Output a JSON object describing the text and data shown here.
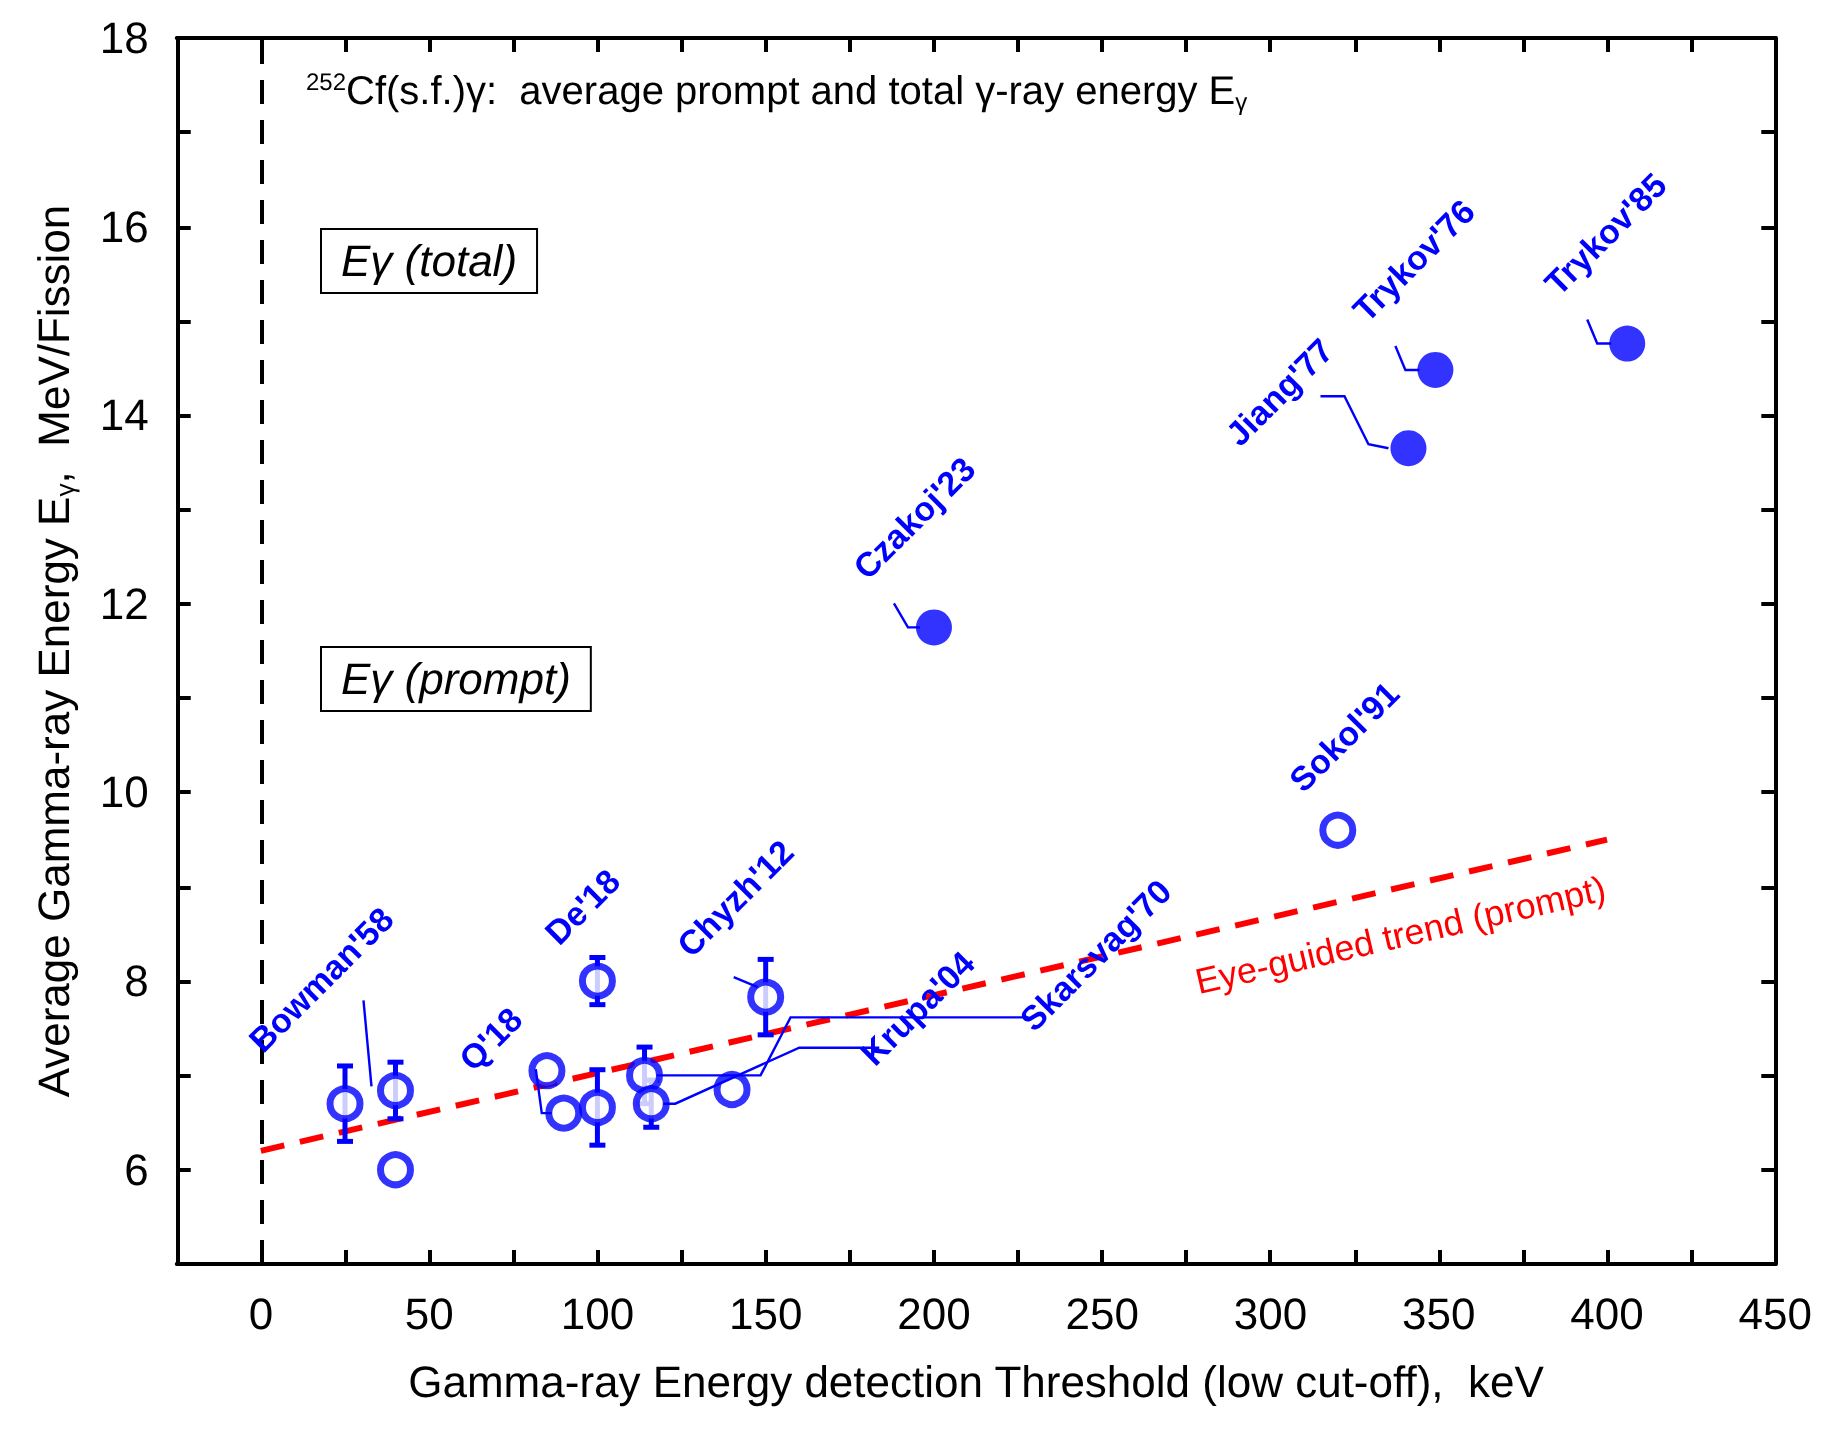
{
  "chart_data": {
    "type": "scatter",
    "title": "$^{252}$Cf(s.f.)γ:  average prompt and total γ-ray energy E$_{γ}$",
    "xlabel": "Gamma-ray Energy detection Threshold (low cut-off),  keV",
    "ylabel": "Average Gamma-ray Energy E$_{γ}$,  MeV/Fission",
    "xlim": [
      -25,
      450
    ],
    "xticks": [
      {
        "value": -25,
        "label": null
      },
      0,
      {
        "value": 25,
        "label": null
      },
      50,
      {
        "value": 75,
        "label": null
      },
      100,
      {
        "value": 125,
        "label": null
      },
      150,
      {
        "value": 175,
        "label": null
      },
      200,
      {
        "value": 225,
        "label": null
      },
      250,
      {
        "value": 275,
        "label": null
      },
      300,
      {
        "value": 325,
        "label": null
      },
      350,
      {
        "value": 375,
        "label": null
      },
      400,
      {
        "value": 425,
        "label": null
      },
      450
    ],
    "ylim": [
      5,
      18
    ],
    "yticks": [
      6,
      {
        "value": 7,
        "label": null
      },
      8,
      {
        "value": 9,
        "label": null
      },
      10,
      {
        "value": 11,
        "label": null
      },
      12,
      {
        "value": 13,
        "label": null
      },
      14,
      {
        "value": 15,
        "label": null
      },
      16,
      {
        "value": 17,
        "label": null
      },
      18
    ],
    "grid": false,
    "series": [
      {
        "color": "#0000ff",
        "marker": "circle",
        "x": [
          25,
          40,
          40,
          85,
          90,
          100,
          100,
          114,
          116,
          140,
          150,
          320
        ],
        "values": [
          6.7,
          6.84,
          6.0,
          7.05,
          6.6,
          6.66,
          8.0,
          7.0,
          6.7,
          6.85,
          7.83,
          9.6
        ],
        "errors": [
          0.4,
          0.3,
          null,
          null,
          null,
          0.4,
          0.25,
          0.3,
          0.25,
          null,
          0.4,
          null
        ]
      },
      {
        "color": "#0000ff",
        "marker": "circle",
        "x": [
          200,
          341,
          349,
          406
        ],
        "values": [
          11.75,
          13.65,
          14.48,
          14.76
        ]
      },
      {
        "type": "line",
        "color": "#ff0000",
        "line_style": "dashed",
        "marker": "none",
        "x": [
          0,
          400
        ],
        "values": [
          6.2,
          9.5
        ]
      }
    ],
    "ref_lines": [
      {
        "axis": "x",
        "value": 0,
        "color": "#000000",
        "line_style": "dashed"
      }
    ],
    "annotations": [
      {
        "text": "Bowman'58",
        "x": 40,
        "y": 6.84
      },
      {
        "text": "Q'18",
        "x": 90,
        "y": 6.6
      },
      {
        "text": "De'18",
        "x": 100,
        "y": 8.0
      },
      {
        "text": "Chyzh'12",
        "x": 150,
        "y": 7.83
      },
      {
        "text": "Krupa'04",
        "x": 116,
        "y": 6.7
      },
      {
        "text": "Skarsvag'70",
        "x": 114,
        "y": 7.0
      },
      {
        "text": "Sokol'91",
        "x": 320,
        "y": 9.6
      },
      {
        "text": "Czakoj'23",
        "x": 200,
        "y": 11.75
      },
      {
        "text": "Jiang'77",
        "x": 341,
        "y": 13.65
      },
      {
        "text": "Trykov'76",
        "x": 349,
        "y": 14.48
      },
      {
        "text": "Trykov'85",
        "x": 406,
        "y": 14.76
      },
      "Eγ (total)",
      "Eγ (prompt)",
      "Eye-guided trend (prompt)"
    ]
  }
}
